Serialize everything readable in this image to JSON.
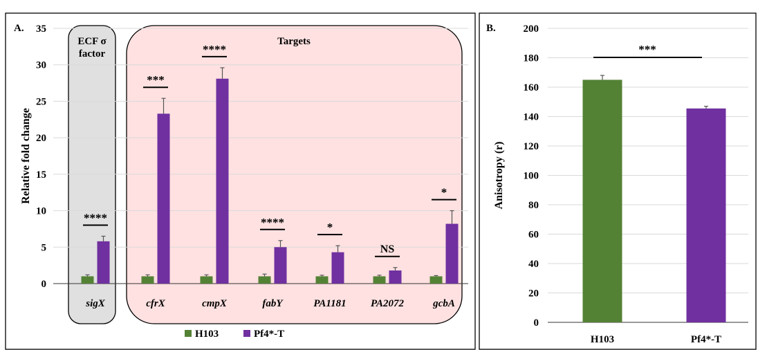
{
  "chart_data": [
    {
      "type": "bar",
      "panel_label": "A.",
      "ylabel": "Relative fold change",
      "ylim": [
        0,
        35
      ],
      "yticks": [
        0,
        5,
        10,
        15,
        20,
        25,
        30,
        35
      ],
      "grid": true,
      "categories": [
        "sigX",
        "cfrX",
        "cmpX",
        "fabY",
        "PA1181",
        "PA2072",
        "gcbA"
      ],
      "series": [
        {
          "name": "H103",
          "color": "#548235",
          "values": [
            1,
            1,
            1,
            1,
            1,
            1,
            1
          ],
          "errors": [
            0.2,
            0.2,
            0.2,
            0.3,
            0.15,
            0.15,
            0.1
          ]
        },
        {
          "name": "Pf4*-T",
          "color": "#7030a0",
          "values": [
            5.8,
            23.3,
            28.1,
            5.0,
            4.3,
            1.8,
            8.2
          ],
          "errors": [
            0.7,
            2.1,
            1.5,
            0.9,
            0.9,
            0.4,
            1.8
          ]
        }
      ],
      "significance": [
        "****",
        "***",
        "****",
        "****",
        "*",
        "NS",
        "*"
      ],
      "groups": [
        {
          "label_lines": [
            "ECF σ",
            "factor"
          ],
          "categories": [
            0
          ],
          "fill": "#e0e0e0"
        },
        {
          "label_lines": [
            "Targets"
          ],
          "categories": [
            1,
            2,
            3,
            4,
            5,
            6
          ],
          "fill": "#ffe1e1"
        }
      ],
      "legend": {
        "position": "bottom",
        "entries": [
          "H103",
          "Pf4*-T"
        ]
      }
    },
    {
      "type": "bar",
      "panel_label": "B.",
      "ylabel": "Anisotropy (r)",
      "ylim": [
        0,
        200
      ],
      "yticks": [
        0,
        20,
        40,
        60,
        80,
        100,
        120,
        140,
        160,
        180,
        200
      ],
      "grid": true,
      "categories": [
        "H103",
        "Pf4*-T"
      ],
      "values": [
        165,
        145.5
      ],
      "errors": [
        3,
        1.5
      ],
      "colors": [
        "#548235",
        "#7030a0"
      ],
      "significance": "***"
    }
  ]
}
